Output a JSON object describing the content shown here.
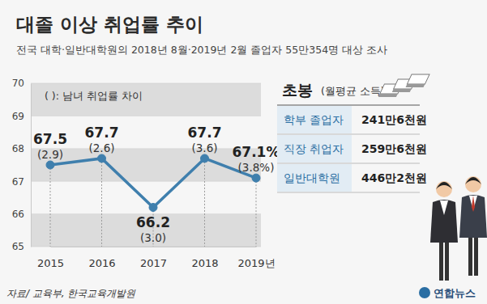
{
  "chart_data": {
    "type": "line",
    "title": "대졸 이상 취업률 추이",
    "subtitle": "전국 대학·일반대학원의 2018년 8월·2019년 2월 졸업자 55만354명 대상 조사",
    "annotation": "( ): 남녀 취업률 차이",
    "categories": [
      "2015",
      "2016",
      "2017",
      "2018",
      "2019년"
    ],
    "values": [
      67.5,
      67.7,
      66.2,
      67.7,
      67.1
    ],
    "value_labels": [
      "67.5",
      "67.7",
      "66.2",
      "67.7",
      "67.1%"
    ],
    "gap_values": [
      2.9,
      2.6,
      3.0,
      3.6,
      3.8
    ],
    "gap_labels": [
      "(2.9)",
      "(2.6)",
      "(3.0)",
      "(3.6)",
      "(3.8%)"
    ],
    "color": "#3f7fad",
    "marker": "circle",
    "line_style": "solid",
    "data_labels": true,
    "grid": true,
    "ylim": [
      65,
      70
    ],
    "yticks": [
      65,
      66,
      67,
      68,
      69,
      70
    ]
  },
  "side_panel": {
    "title": "초봉",
    "subtitle": "(월평균 소득)",
    "rows": [
      [
        "학부 졸업자",
        "241만6천원"
      ],
      [
        "직장 취업자",
        "259만6천원"
      ],
      [
        "일반대학원",
        "446만2천원"
      ]
    ]
  },
  "source": "자료/ 교육부, 한국교육개발원",
  "credit": "연합뉴스"
}
